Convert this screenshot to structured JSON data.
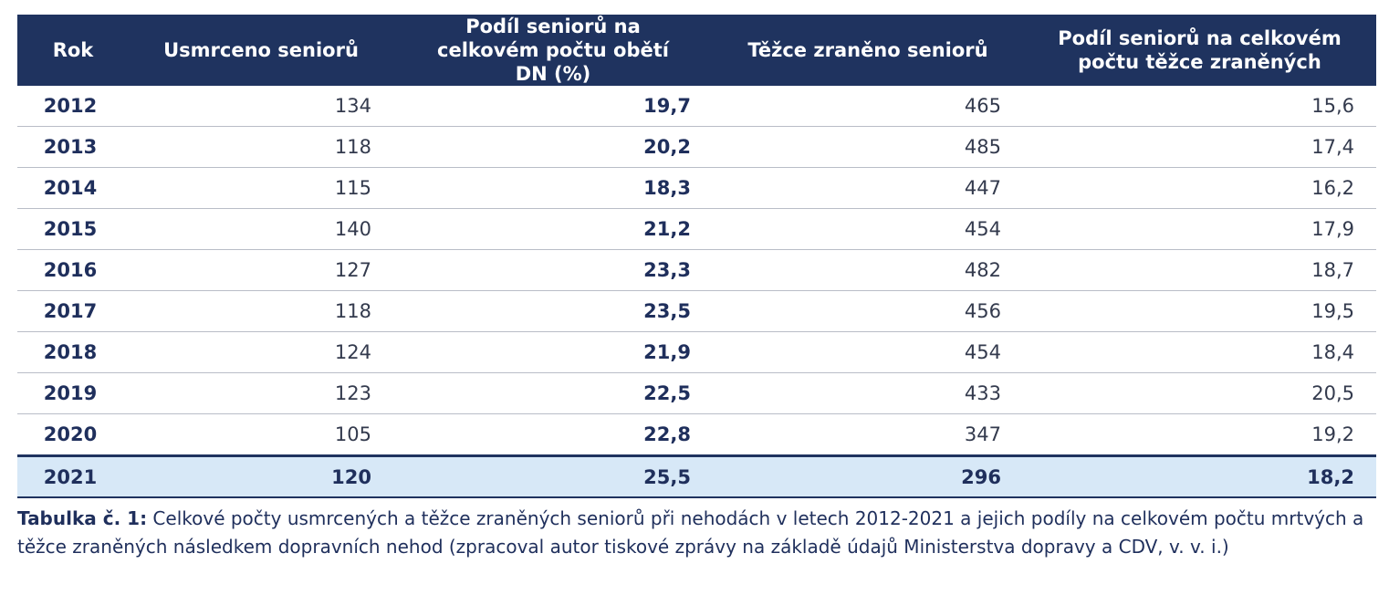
{
  "table": {
    "headers": [
      "Rok",
      "Usmrceno seniorů",
      "Podíl seniorů na celkovém počtu obětí DN (%)",
      "Těžce zraněno seniorů",
      "Podíl seniorů na celkovém počtu těžce zraněných"
    ],
    "rows": [
      [
        "2012",
        "134",
        "19,7",
        "465",
        "15,6"
      ],
      [
        "2013",
        "118",
        "20,2",
        "485",
        "17,4"
      ],
      [
        "2014",
        "115",
        "18,3",
        "447",
        "16,2"
      ],
      [
        "2015",
        "140",
        "21,2",
        "454",
        "17,9"
      ],
      [
        "2016",
        "127",
        "23,3",
        "482",
        "18,7"
      ],
      [
        "2017",
        "118",
        "23,5",
        "456",
        "19,5"
      ],
      [
        "2018",
        "124",
        "21,9",
        "454",
        "18,4"
      ],
      [
        "2019",
        "123",
        "22,5",
        "433",
        "20,5"
      ],
      [
        "2020",
        "105",
        "22,8",
        "347",
        "19,2"
      ],
      [
        "2021",
        "120",
        "25,5",
        "296",
        "18,2"
      ]
    ]
  },
  "caption": {
    "lead": "Tabulka č. 1:",
    "text": " Celkové počty usmrcených a těžce zraněných seniorů při nehodách v letech 2012-2021 a jejich podíly na celkovém počtu mrtvých a těžce zraněných následkem dopravních nehod (zpracoval autor tiskové zprávy na základě údajů Ministerstva dopravy a CDV, v. v. i.)"
  },
  "colors": {
    "header_bg": "#1f335f",
    "highlight_row_bg": "#d7e8f7",
    "text_dark_blue": "#1f2f5c"
  }
}
